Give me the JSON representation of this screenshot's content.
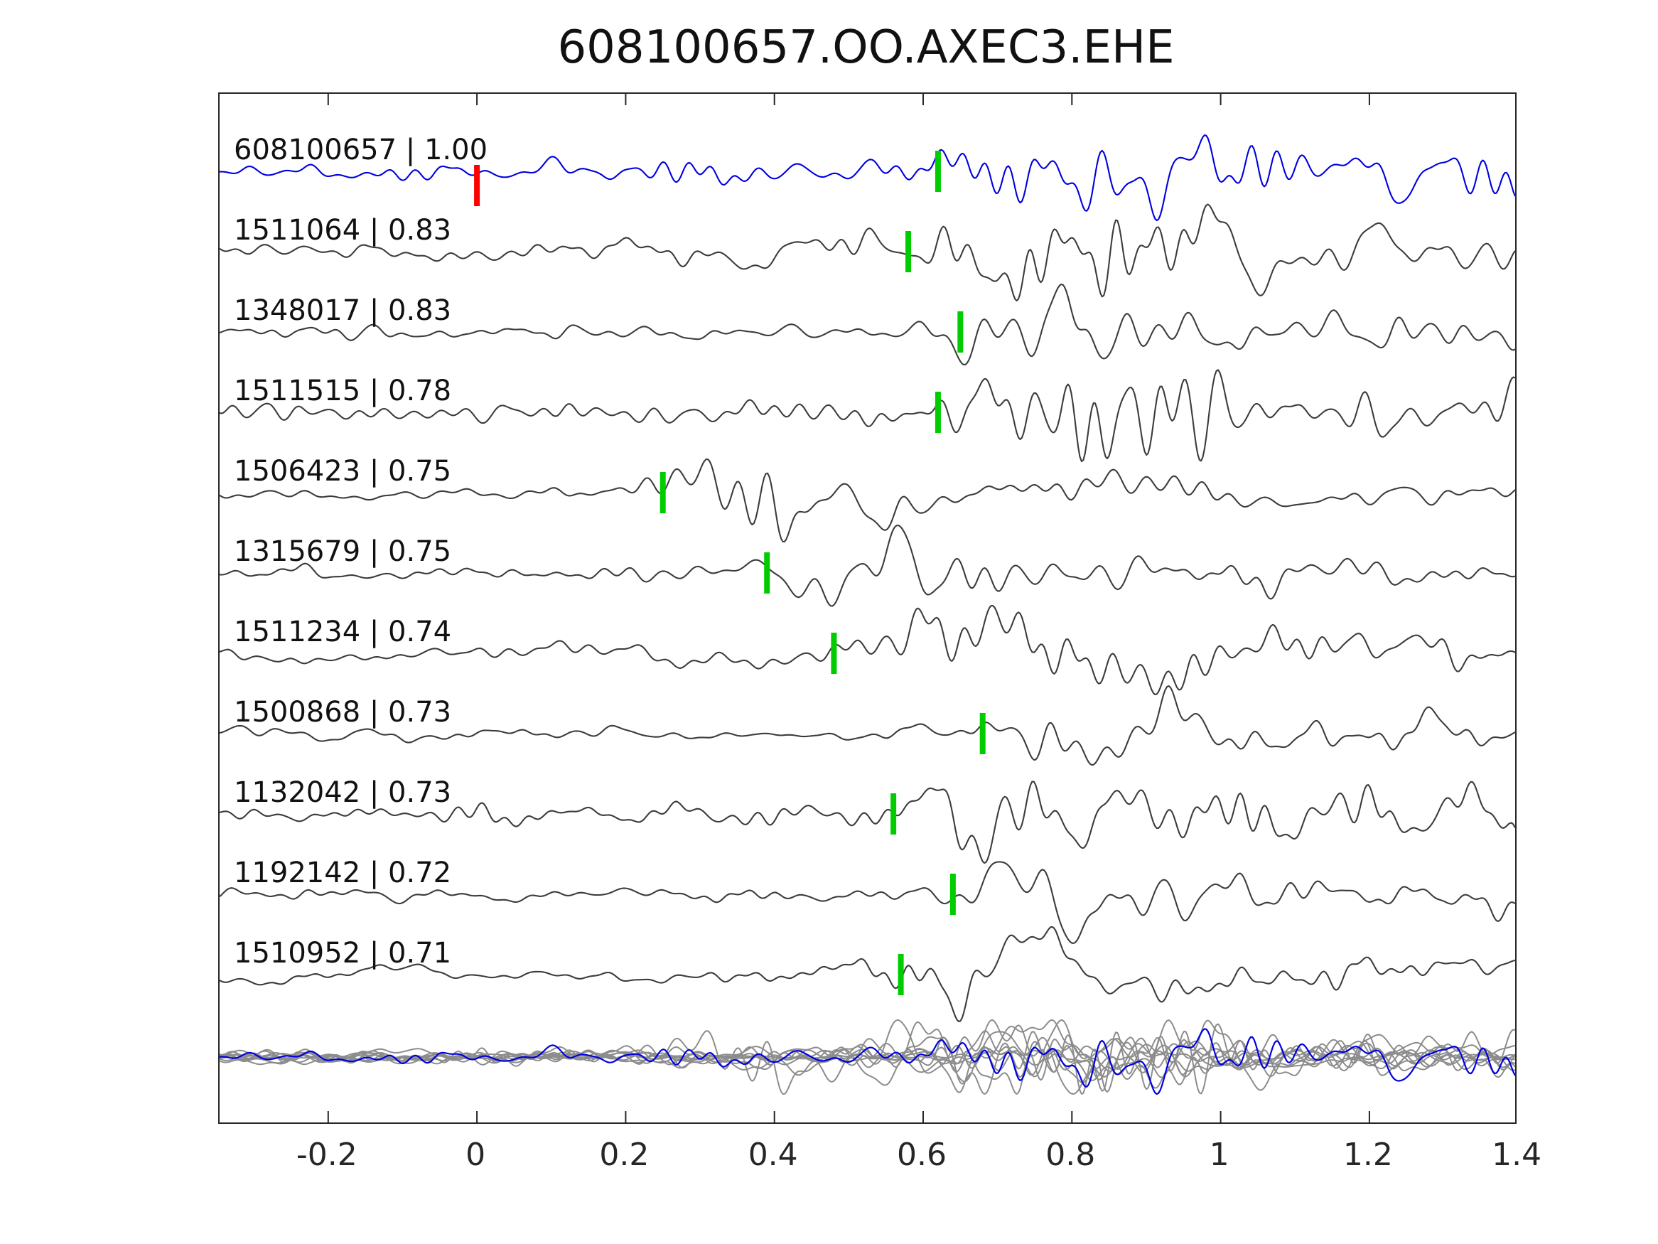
{
  "title": "608100657.OO.AXEC3.EHE",
  "chart_data": {
    "type": "line",
    "title": "608100657.OO.AXEC3.EHE",
    "xlabel": "",
    "ylabel": "",
    "xlim": [
      -0.346,
      1.396
    ],
    "x_ticks": [
      -0.2,
      0,
      0.2,
      0.4,
      0.6,
      0.8,
      1,
      1.2,
      1.4
    ],
    "x_tick_labels": [
      "-0.2",
      "0",
      "0.2",
      "0.4",
      "0.6",
      "0.8",
      "1",
      "1.2",
      "1.4"
    ],
    "grid": false,
    "legend": "none",
    "colors": {
      "template": "#0000e0",
      "trace": "#3c3c3c",
      "pick": "#00cc00",
      "origin": "#ff0000",
      "overlay": "#8c8c8c",
      "axis": "#262626"
    },
    "traces": [
      {
        "id": "608100657",
        "cc": 1.0,
        "label": "608100657 | 1.00",
        "pick": 0.62,
        "origin_mark": 0.0,
        "is_template": true
      },
      {
        "id": "1511064",
        "cc": 0.83,
        "label": "1511064 | 0.83",
        "pick": 0.58
      },
      {
        "id": "1348017",
        "cc": 0.83,
        "label": "1348017 | 0.83",
        "pick": 0.65
      },
      {
        "id": "1511515",
        "cc": 0.78,
        "label": "1511515 | 0.78",
        "pick": 0.62
      },
      {
        "id": "1506423",
        "cc": 0.75,
        "label": "1506423 | 0.75",
        "pick": 0.25
      },
      {
        "id": "1315679",
        "cc": 0.75,
        "label": "1315679 | 0.75",
        "pick": 0.39
      },
      {
        "id": "1511234",
        "cc": 0.74,
        "label": "1511234 | 0.74",
        "pick": 0.48
      },
      {
        "id": "1500868",
        "cc": 0.73,
        "label": "1500868 | 0.73",
        "pick": 0.68
      },
      {
        "id": "1132042",
        "cc": 0.73,
        "label": "1132042 | 0.73",
        "pick": 0.56
      },
      {
        "id": "1192142",
        "cc": 0.72,
        "label": "1192142 | 0.72",
        "pick": 0.64
      },
      {
        "id": "1510952",
        "cc": 0.71,
        "label": "1510952 | 0.71",
        "pick": 0.57
      }
    ],
    "overlay_row": {
      "description": "all traces overlaid at bottom; template trace drawn in blue over gray stack"
    }
  }
}
